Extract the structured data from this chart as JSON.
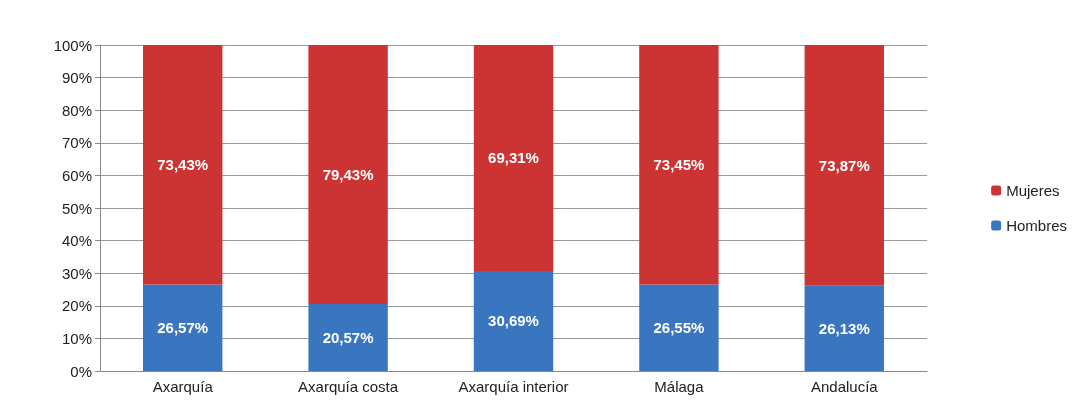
{
  "chart_data": {
    "type": "bar",
    "stacked": true,
    "categories": [
      "Axarquía",
      "Axarquía costa",
      "Axarquía interior",
      "Málaga",
      "Andalucía"
    ],
    "series": [
      {
        "name": "Hombres",
        "color": "#3a76bf",
        "values": [
          26.57,
          20.57,
          30.69,
          26.55,
          26.13
        ],
        "value_labels": [
          "26,57%",
          "20,57%",
          "30,69%",
          "26,55%",
          "26,13%"
        ]
      },
      {
        "name": "Mujeres",
        "color": "#cc3333",
        "values": [
          73.43,
          79.43,
          69.31,
          73.45,
          73.87
        ],
        "value_labels": [
          "73,43%",
          "79,43%",
          "69,31%",
          "73,45%",
          "73,87%"
        ]
      }
    ],
    "ylim": [
      0,
      100
    ],
    "yticks": [
      {
        "value": 0,
        "label": "0%"
      },
      {
        "value": 10,
        "label": "10%"
      },
      {
        "value": 20,
        "label": "20%"
      },
      {
        "value": 30,
        "label": "30%"
      },
      {
        "value": 40,
        "label": "40%"
      },
      {
        "value": 50,
        "label": "50%"
      },
      {
        "value": 60,
        "label": "60%"
      },
      {
        "value": 70,
        "label": "70%"
      },
      {
        "value": 80,
        "label": "80%"
      },
      {
        "value": 90,
        "label": "90%"
      },
      {
        "value": 100,
        "label": "100%"
      }
    ],
    "grid": "y",
    "legend": "right"
  }
}
